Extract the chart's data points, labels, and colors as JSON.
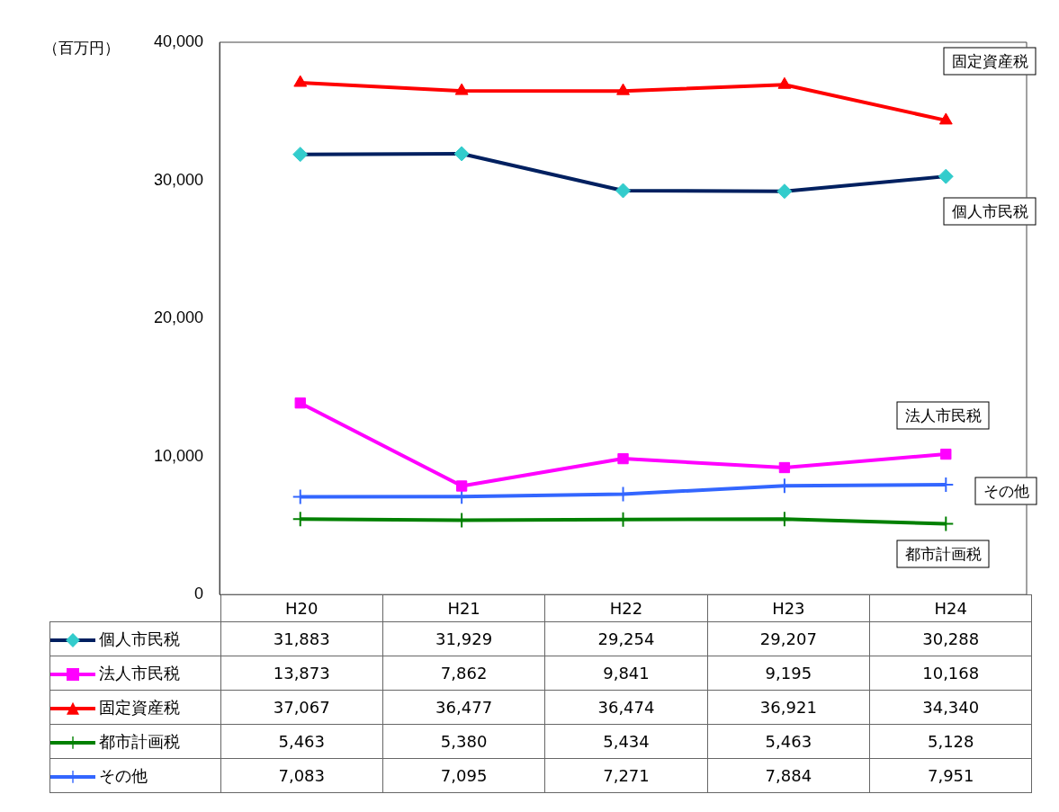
{
  "chart_data": {
    "type": "line",
    "ylabel": "（百万円）",
    "categories": [
      "H20",
      "H21",
      "H22",
      "H23",
      "H24"
    ],
    "ylim": [
      0,
      40000
    ],
    "yticks": [
      {
        "value": 0,
        "label": "0"
      },
      {
        "value": 10000,
        "label": "10,000"
      },
      {
        "value": 20000,
        "label": "20,000"
      },
      {
        "value": 30000,
        "label": "30,000"
      },
      {
        "value": 40000,
        "label": "40,000"
      }
    ],
    "grid": false,
    "legend": "bottom",
    "line_style": "solid",
    "series": [
      {
        "name": "個人市民税",
        "color": "#002060",
        "colors": [
          "#33cccc",
          "#33cccc",
          "#33cccc",
          "#33cccc",
          "#33cccc"
        ],
        "marker": "diamond",
        "values": [
          31883,
          31929,
          29254,
          29207,
          30288
        ],
        "value_labels": [
          "31,883",
          "31,929",
          "29,254",
          "29,207",
          "30,288"
        ]
      },
      {
        "name": "法人市民税",
        "color": "#ff00ff",
        "marker": "square",
        "values": [
          13873,
          7862,
          9841,
          9195,
          10168
        ],
        "value_labels": [
          "13,873",
          "7,862",
          "9,841",
          "9,195",
          "10,168"
        ]
      },
      {
        "name": "固定資産税",
        "color": "#ff0000",
        "marker": "triangle",
        "values": [
          37067,
          36477,
          36474,
          36921,
          34340
        ],
        "value_labels": [
          "37,067",
          "36,477",
          "36,474",
          "36,921",
          "34,340"
        ]
      },
      {
        "name": "都市計画税",
        "color": "#008000",
        "marker": "cross",
        "values": [
          5463,
          5380,
          5434,
          5463,
          5128
        ],
        "value_labels": [
          "5,463",
          "5,380",
          "5,434",
          "5,463",
          "5,128"
        ]
      },
      {
        "name": "その他",
        "color": "#3366ff",
        "marker": "cross",
        "values": [
          7083,
          7095,
          7271,
          7884,
          7951
        ],
        "value_labels": [
          "7,083",
          "7,095",
          "7,271",
          "7,884",
          "7,951"
        ]
      }
    ]
  }
}
